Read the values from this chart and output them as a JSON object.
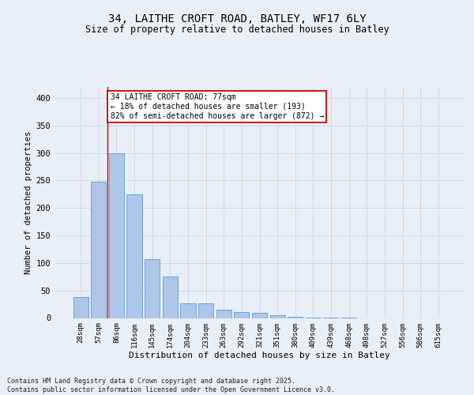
{
  "title_line1": "34, LAITHE CROFT ROAD, BATLEY, WF17 6LY",
  "title_line2": "Size of property relative to detached houses in Batley",
  "xlabel": "Distribution of detached houses by size in Batley",
  "ylabel": "Number of detached properties",
  "categories": [
    "28sqm",
    "57sqm",
    "86sqm",
    "116sqm",
    "145sqm",
    "174sqm",
    "204sqm",
    "233sqm",
    "263sqm",
    "292sqm",
    "321sqm",
    "351sqm",
    "380sqm",
    "409sqm",
    "439sqm",
    "468sqm",
    "498sqm",
    "527sqm",
    "556sqm",
    "586sqm",
    "615sqm"
  ],
  "values": [
    38,
    247,
    300,
    225,
    107,
    75,
    26,
    27,
    15,
    11,
    9,
    5,
    2,
    1,
    1,
    1,
    0,
    0,
    0,
    0,
    0
  ],
  "bar_color": "#aec6e8",
  "bar_edge_color": "#5b9bd5",
  "annotation_text": "34 LAITHE CROFT ROAD: 77sqm\n← 18% of detached houses are smaller (193)\n82% of semi-detached houses are larger (872) →",
  "annotation_box_color": "#ffffff",
  "annotation_box_edge": "#cc0000",
  "vline_color": "#cc0000",
  "vline_x": 1.5,
  "footer_text": "Contains HM Land Registry data © Crown copyright and database right 2025.\nContains public sector information licensed under the Open Government Licence v3.0.",
  "ylim": [
    0,
    420
  ],
  "yticks": [
    0,
    50,
    100,
    150,
    200,
    250,
    300,
    350,
    400
  ],
  "grid_color": "#d0d8e8",
  "bg_color": "#eaeff7",
  "plot_bg_color": "#eaeff7"
}
